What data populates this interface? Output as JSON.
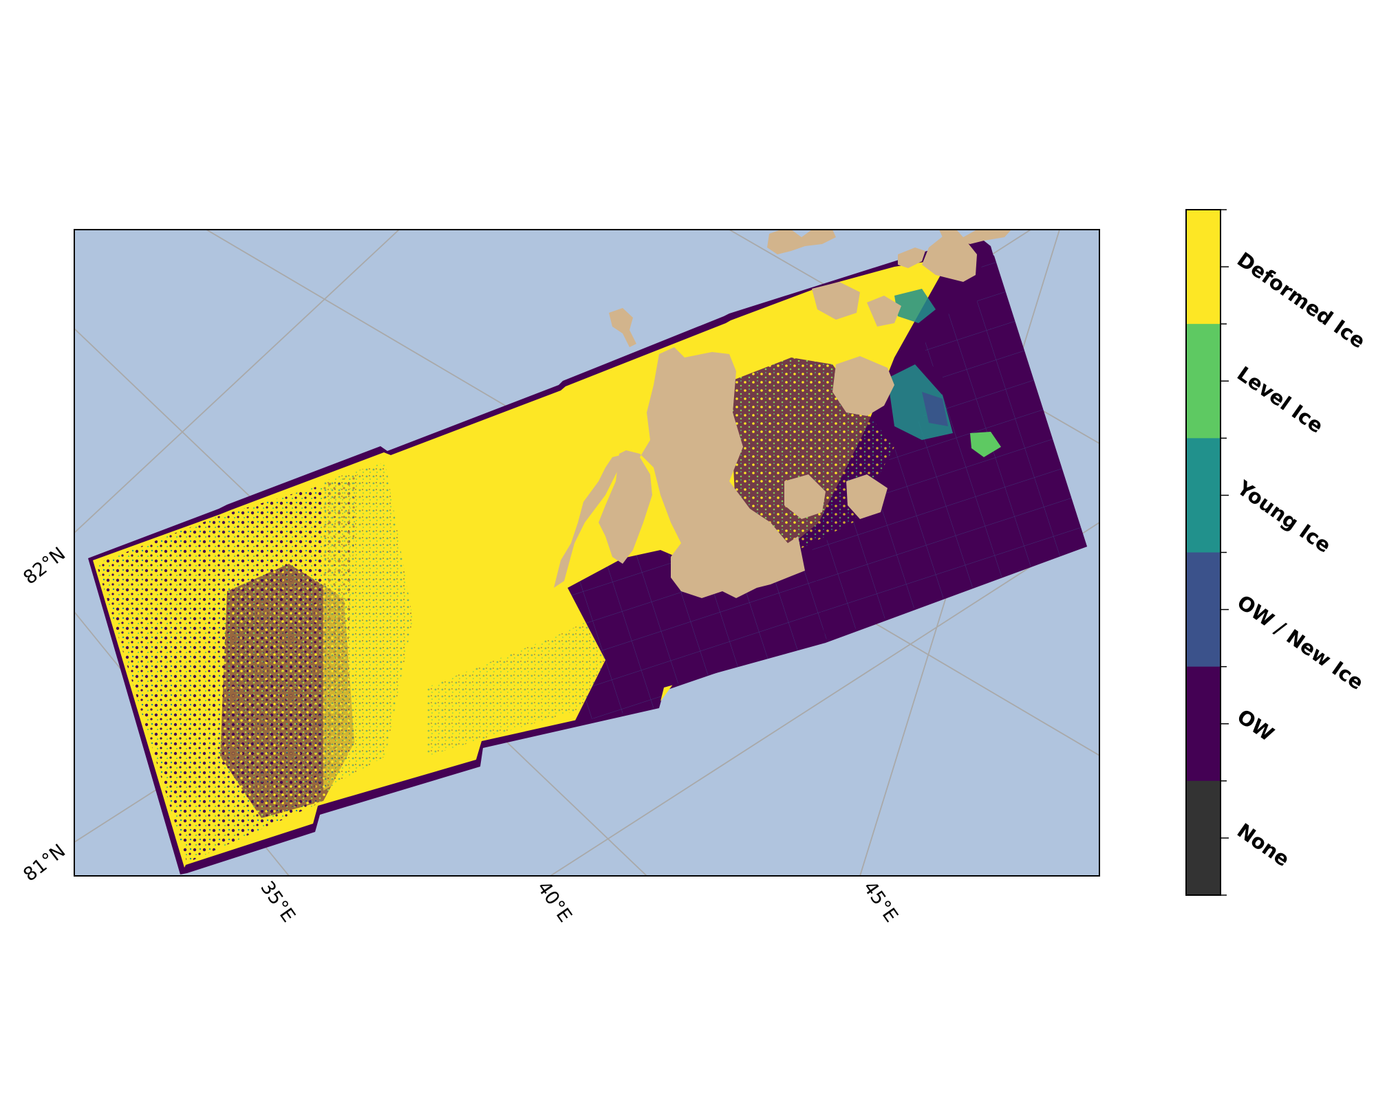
{
  "map": {
    "colors": {
      "background_ocean": "#b0c4de",
      "land": "#d2b48c",
      "graticule": "#a9a9a9",
      "frame": "#000000"
    },
    "lat_labels": [
      "82°N",
      "81°N"
    ],
    "lon_labels": [
      "35°E",
      "40°E",
      "45°E"
    ]
  },
  "colorbar": {
    "classes": [
      {
        "label": "Deformed Ice",
        "color": "#fde725"
      },
      {
        "label": "Level Ice",
        "color": "#5ec962"
      },
      {
        "label": "Young Ice",
        "color": "#21918c"
      },
      {
        "label": "OW / New Ice",
        "color": "#3b528b"
      },
      {
        "label": "OW",
        "color": "#440154"
      },
      {
        "label": "None",
        "color": "#333333"
      }
    ]
  }
}
